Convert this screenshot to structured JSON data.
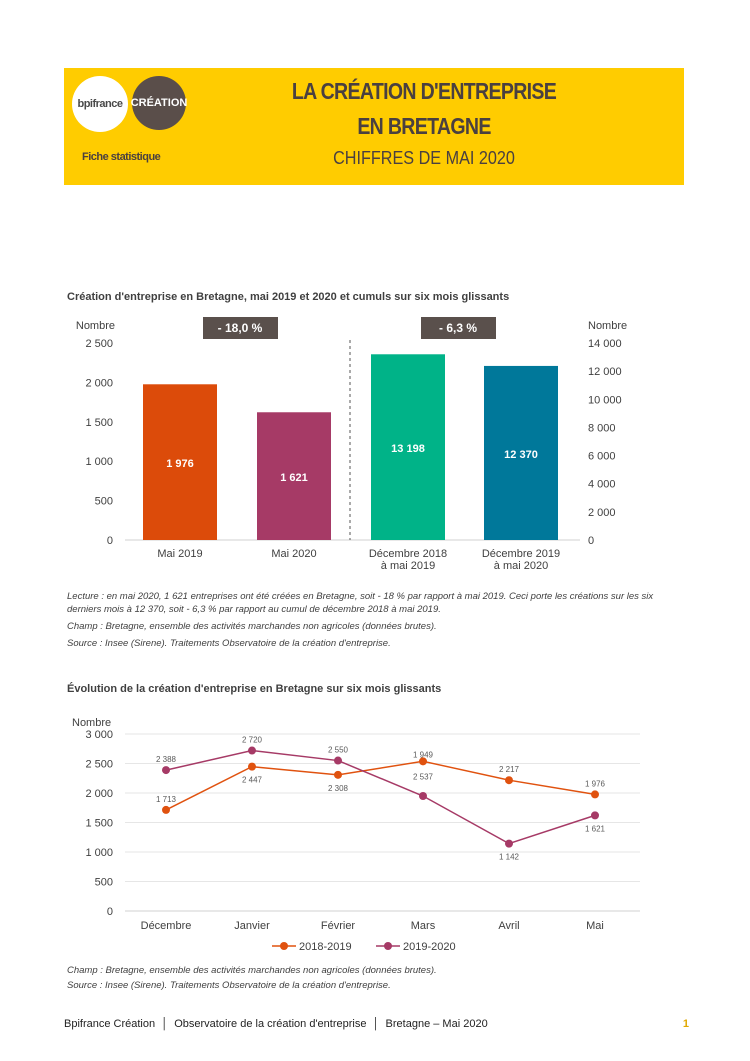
{
  "header": {
    "logo_bpi": "bpifrance",
    "logo_creation": "CRÉATION",
    "fiche": "Fiche statistique",
    "title_line1": "LA CRÉATION D'ENTREPRISE",
    "title_line2": "EN BRETAGNE",
    "subtitle": "CHIFFRES DE MAI 2020",
    "bg_color": "#FFCC00"
  },
  "chart_data": [
    {
      "type": "bar",
      "title": "Création d'entreprise en Bretagne, mai 2019 et 2020 et cumuls sur six mois glissants",
      "ylabel_left": "Nombre",
      "ylabel_right": "Nombre",
      "ylim_left": [
        0,
        2500
      ],
      "yticks_left": [
        "0",
        "500",
        "1 000",
        "1 500",
        "2 000",
        "2 500"
      ],
      "yticks_left_values": [
        0,
        500,
        1000,
        1500,
        2000,
        2500
      ],
      "ylim_right": [
        0,
        14000
      ],
      "yticks_right": [
        "0",
        "2 000",
        "4 000",
        "6 000",
        "8 000",
        "10 000",
        "12 000",
        "14 000"
      ],
      "yticks_right_values": [
        0,
        2000,
        4000,
        6000,
        8000,
        10000,
        12000,
        14000
      ],
      "categories": [
        [
          "Mai 2019"
        ],
        [
          "Mai 2020"
        ],
        [
          "Décembre 2018",
          "à mai 2019"
        ],
        [
          "Décembre 2019",
          "à mai 2020"
        ]
      ],
      "values": [
        1976,
        1621,
        13198,
        12370
      ],
      "labels": [
        "1 976",
        "1 621",
        "13 198",
        "12 370"
      ],
      "axis": [
        "left",
        "left",
        "right",
        "right"
      ],
      "colors": [
        "#DC4B0A",
        "#A63A66",
        "#00B388",
        "#00789A"
      ],
      "badges": [
        "- 18,0 %",
        "- 6,3 %"
      ],
      "grid": false
    },
    {
      "type": "line",
      "title": "Évolution de la création d'entreprise en Bretagne sur six mois glissants",
      "ylabel": "Nombre",
      "ylim": [
        0,
        3000
      ],
      "yticks": [
        "0",
        "500",
        "1 000",
        "1 500",
        "2 000",
        "2 500",
        "3 000"
      ],
      "yticks_values": [
        0,
        500,
        1000,
        1500,
        2000,
        2500,
        3000
      ],
      "categories": [
        "Décembre",
        "Janvier",
        "Février",
        "Mars",
        "Avril",
        "Mai"
      ],
      "grid": true,
      "legend": "bottom",
      "series": [
        {
          "name": "2018-2019",
          "color": "#E0520F",
          "values": [
            1713,
            2447,
            2308,
            2537,
            2217,
            1976
          ],
          "labels": [
            "1 713",
            "2 447",
            "2 308",
            "2 537",
            "2 217",
            "1 976"
          ]
        },
        {
          "name": "2019-2020",
          "color": "#A63A66",
          "values": [
            2388,
            2720,
            2550,
            1949,
            1142,
            1621
          ],
          "labels": [
            "2 388",
            "2 720",
            "2 550",
            "1 949",
            "1 142",
            "1 621"
          ]
        }
      ]
    }
  ],
  "notes1": {
    "lecture": "Lecture : en mai 2020, 1 621 entreprises ont été créées en Bretagne, soit - 18 % par rapport à mai 2019. Ceci porte les créations sur les six derniers mois à 12 370, soit - 6,3 % par rapport au cumul de décembre 2018 à mai 2019.",
    "champ": "Champ : Bretagne, ensemble des activités marchandes non agricoles (données brutes).",
    "source": "Source : Insee (Sirene). Traitements Observatoire de la création d'entreprise."
  },
  "notes2": {
    "champ": "Champ : Bretagne, ensemble des activités marchandes non agricoles (données brutes).",
    "source": "Source : Insee (Sirene). Traitements Observatoire de la création d'entreprise."
  },
  "footer": {
    "text": "Bpifrance Création  │  Observatoire de la création d'entreprise  │  Bretagne – Mai 2020",
    "page": "1"
  }
}
